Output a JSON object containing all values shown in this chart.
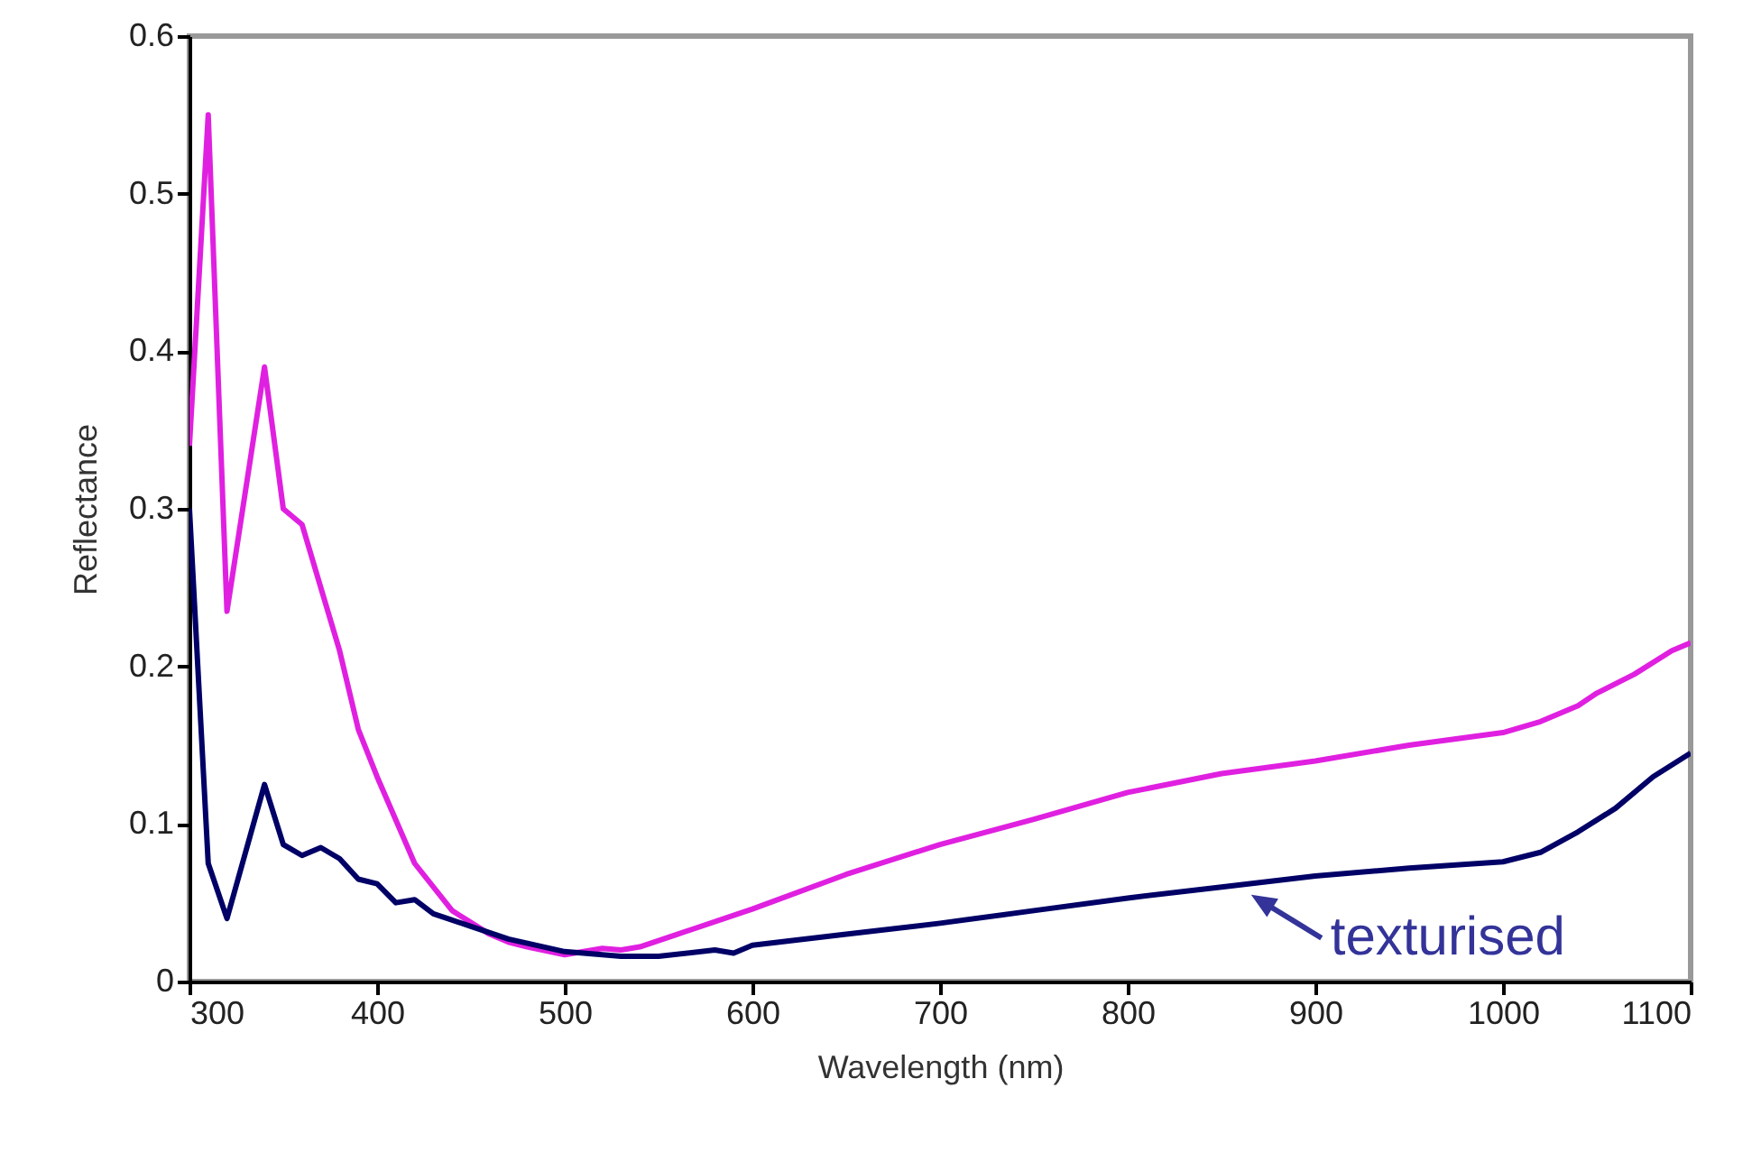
{
  "chart_data": {
    "type": "line",
    "xlabel": "Wavelength (nm)",
    "ylabel": "Reflectance",
    "xlim": [
      300,
      1100
    ],
    "xticks": [
      300,
      400,
      500,
      600,
      700,
      800,
      900,
      1000,
      1100
    ],
    "ylim": [
      0,
      0.6
    ],
    "yticks": [
      0,
      0.1,
      0.2,
      0.3,
      0.4,
      0.5,
      0.6
    ],
    "grid": false,
    "legend": false,
    "line_style": "solid",
    "annotations": [
      {
        "text": "texturised",
        "x": 860,
        "y": 0.062
      }
    ],
    "series": [
      {
        "color": "#e020e0",
        "x": [
          300,
          310,
          320,
          340,
          350,
          360,
          370,
          380,
          390,
          400,
          420,
          440,
          460,
          470,
          480,
          500,
          520,
          530,
          540,
          560,
          600,
          650,
          700,
          750,
          800,
          850,
          900,
          950,
          1000,
          1020,
          1040,
          1050,
          1070,
          1090,
          1100
        ],
        "values": [
          0.34,
          0.55,
          0.235,
          0.39,
          0.3,
          0.29,
          0.25,
          0.21,
          0.16,
          0.13,
          0.075,
          0.045,
          0.03,
          0.025,
          0.022,
          0.017,
          0.021,
          0.02,
          0.022,
          0.03,
          0.046,
          0.068,
          0.087,
          0.103,
          0.12,
          0.132,
          0.14,
          0.15,
          0.158,
          0.165,
          0.175,
          0.183,
          0.195,
          0.21,
          0.215
        ]
      },
      {
        "color": "#000066",
        "x": [
          300,
          310,
          320,
          340,
          350,
          360,
          370,
          380,
          390,
          400,
          410,
          420,
          430,
          450,
          470,
          500,
          530,
          550,
          580,
          590,
          600,
          650,
          700,
          750,
          800,
          850,
          900,
          950,
          1000,
          1020,
          1040,
          1060,
          1080,
          1100
        ],
        "values": [
          0.3,
          0.075,
          0.04,
          0.125,
          0.087,
          0.08,
          0.085,
          0.078,
          0.065,
          0.062,
          0.05,
          0.052,
          0.043,
          0.035,
          0.027,
          0.019,
          0.016,
          0.016,
          0.02,
          0.018,
          0.023,
          0.03,
          0.037,
          0.045,
          0.053,
          0.06,
          0.067,
          0.072,
          0.076,
          0.082,
          0.095,
          0.11,
          0.13,
          0.145
        ]
      }
    ]
  }
}
